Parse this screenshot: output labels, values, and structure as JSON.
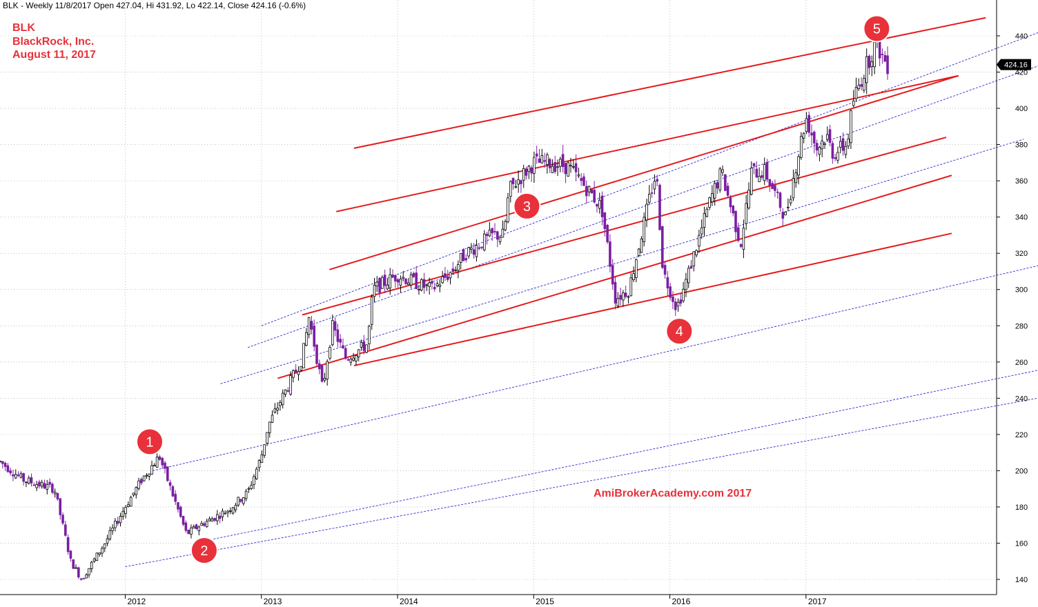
{
  "header": {
    "text": "BLK - Weekly 11/8/2017 Open 427.04, Hi 431.92, Lo 422.14, Close 424.16 (-0.6%)"
  },
  "info": {
    "symbol": "BLK",
    "name": "BlackRock, Inc.",
    "date": "August 11, 2017"
  },
  "watermark": "AmiBrokerAcademy.com  2017",
  "colors": {
    "up": "#000000",
    "down": "#7b1fa2",
    "trend": "#e41a1c",
    "channel": "#2a2ad0",
    "grid": "#9a9a9a",
    "accent": "#e8313a"
  },
  "chart_data": {
    "type": "candlestick",
    "ylim": [
      130,
      450
    ],
    "yticks": [
      140,
      160,
      180,
      200,
      220,
      240,
      260,
      280,
      300,
      320,
      340,
      360,
      380,
      400,
      420,
      440
    ],
    "xticks": [
      {
        "label": "2012",
        "date": 2012.0
      },
      {
        "label": "2013",
        "date": 2013.0
      },
      {
        "label": "2014",
        "date": 2014.0
      },
      {
        "label": "2015",
        "date": 2015.0
      },
      {
        "label": "2016",
        "date": 2016.0
      },
      {
        "label": "2017",
        "date": 2017.0
      }
    ],
    "xlim": [
      2011.08,
      2018.4
    ],
    "last_value": "424.16",
    "path": [
      [
        2011.08,
        205
      ],
      [
        2011.25,
        195
      ],
      [
        2011.48,
        190
      ],
      [
        2011.6,
        150
      ],
      [
        2011.68,
        140
      ],
      [
        2011.85,
        160
      ],
      [
        2012.0,
        180
      ],
      [
        2012.12,
        195
      ],
      [
        2012.25,
        208
      ],
      [
        2012.38,
        180
      ],
      [
        2012.45,
        165
      ],
      [
        2012.55,
        170
      ],
      [
        2012.75,
        178
      ],
      [
        2012.9,
        188
      ],
      [
        2013.0,
        208
      ],
      [
        2013.05,
        225
      ],
      [
        2013.15,
        240
      ],
      [
        2013.3,
        262
      ],
      [
        2013.35,
        285
      ],
      [
        2013.45,
        245
      ],
      [
        2013.52,
        280
      ],
      [
        2013.62,
        262
      ],
      [
        2013.78,
        270
      ],
      [
        2013.82,
        300
      ],
      [
        2014.0,
        308
      ],
      [
        2014.25,
        300
      ],
      [
        2014.4,
        310
      ],
      [
        2014.5,
        320
      ],
      [
        2014.7,
        330
      ],
      [
        2014.78,
        330
      ],
      [
        2014.82,
        355
      ],
      [
        2015.0,
        370
      ],
      [
        2015.1,
        370
      ],
      [
        2015.25,
        368
      ],
      [
        2015.4,
        355
      ],
      [
        2015.5,
        345
      ],
      [
        2015.6,
        295
      ],
      [
        2015.7,
        300
      ],
      [
        2015.85,
        350
      ],
      [
        2015.9,
        365
      ],
      [
        2015.95,
        310
      ],
      [
        2016.05,
        290
      ],
      [
        2016.1,
        300
      ],
      [
        2016.2,
        325
      ],
      [
        2016.3,
        350
      ],
      [
        2016.38,
        365
      ],
      [
        2016.45,
        345
      ],
      [
        2016.52,
        325
      ],
      [
        2016.6,
        365
      ],
      [
        2016.7,
        365
      ],
      [
        2016.85,
        340
      ],
      [
        2016.93,
        370
      ],
      [
        2017.0,
        395
      ],
      [
        2017.08,
        378
      ],
      [
        2017.15,
        385
      ],
      [
        2017.2,
        375
      ],
      [
        2017.3,
        380
      ],
      [
        2017.35,
        405
      ],
      [
        2017.45,
        425
      ],
      [
        2017.52,
        437
      ],
      [
        2017.55,
        430
      ],
      [
        2017.6,
        424
      ]
    ],
    "trend_lines": [
      {
        "from": [
          2012.0,
          147
        ],
        "to": [
          2018.7,
          240
        ]
      },
      {
        "from": [
          2012.5,
          160
        ],
        "to": [
          2019.0,
          260
        ]
      },
      {
        "from": [
          2012.2,
          200
        ],
        "to": [
          2019.1,
          320
        ]
      },
      {
        "from": [
          2012.7,
          248
        ],
        "to": [
          2018.6,
          383
        ]
      },
      {
        "from": [
          2012.9,
          268
        ],
        "to": [
          2019.4,
          442
        ]
      },
      {
        "from": [
          2013.0,
          280
        ],
        "to": [
          2019.7,
          470
        ]
      }
    ],
    "red_lines": [
      {
        "from": [
          2013.12,
          251
        ],
        "to": [
          2018.07,
          363
        ]
      },
      {
        "from": [
          2013.3,
          286
        ],
        "to": [
          2018.03,
          384
        ]
      },
      {
        "from": [
          2013.5,
          311
        ],
        "to": [
          2018.12,
          418
        ]
      },
      {
        "from": [
          2013.55,
          343
        ],
        "to": [
          2018.12,
          418
        ]
      },
      {
        "from": [
          2013.68,
          378
        ],
        "to": [
          2018.32,
          450
        ]
      },
      {
        "from": [
          2013.68,
          258
        ],
        "to": [
          2018.07,
          331
        ]
      }
    ],
    "markers": [
      {
        "label": "1",
        "date": 2012.18,
        "value": 216
      },
      {
        "label": "2",
        "date": 2012.58,
        "value": 156
      },
      {
        "label": "3",
        "date": 2014.95,
        "value": 346
      },
      {
        "label": "4",
        "date": 2016.07,
        "value": 277
      },
      {
        "label": "5",
        "date": 2017.52,
        "value": 444
      }
    ]
  }
}
